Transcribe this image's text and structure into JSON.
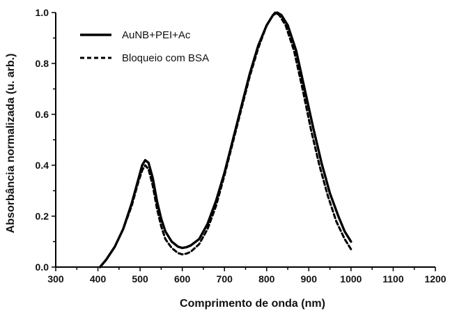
{
  "chart_data": {
    "type": "line",
    "title": "",
    "xlabel": "Comprimento de onda (nm)",
    "ylabel": "Absorbância normalizada (u. arb.)",
    "xlim": [
      300,
      1200
    ],
    "ylim": [
      0.0,
      1.0
    ],
    "xticks": [
      300,
      400,
      500,
      600,
      700,
      800,
      900,
      1000,
      1100,
      1200
    ],
    "xtick_labels": [
      "300",
      "400",
      "500",
      "600",
      "700",
      "800",
      "900",
      "1000",
      "1100",
      "1200"
    ],
    "yticks": [
      0.0,
      0.2,
      0.4,
      0.6,
      0.8,
      1.0
    ],
    "ytick_labels": [
      "0.0",
      "0.2",
      "0.4",
      "0.6",
      "0.8",
      "1.0"
    ],
    "grid": false,
    "legend_position": "top-left",
    "series": [
      {
        "name": "AuNB+PEI+Ac",
        "style": "solid",
        "color": "#000000",
        "points": [
          [
            405,
            0.0
          ],
          [
            420,
            0.03
          ],
          [
            440,
            0.08
          ],
          [
            460,
            0.15
          ],
          [
            480,
            0.25
          ],
          [
            495,
            0.34
          ],
          [
            505,
            0.4
          ],
          [
            512,
            0.42
          ],
          [
            520,
            0.41
          ],
          [
            530,
            0.35
          ],
          [
            540,
            0.26
          ],
          [
            550,
            0.19
          ],
          [
            560,
            0.14
          ],
          [
            575,
            0.1
          ],
          [
            590,
            0.08
          ],
          [
            600,
            0.075
          ],
          [
            610,
            0.078
          ],
          [
            620,
            0.085
          ],
          [
            640,
            0.11
          ],
          [
            660,
            0.17
          ],
          [
            680,
            0.26
          ],
          [
            700,
            0.37
          ],
          [
            720,
            0.5
          ],
          [
            740,
            0.63
          ],
          [
            760,
            0.76
          ],
          [
            780,
            0.87
          ],
          [
            800,
            0.95
          ],
          [
            815,
            0.99
          ],
          [
            825,
            1.0
          ],
          [
            835,
            0.99
          ],
          [
            850,
            0.95
          ],
          [
            870,
            0.85
          ],
          [
            890,
            0.7
          ],
          [
            910,
            0.55
          ],
          [
            930,
            0.41
          ],
          [
            950,
            0.29
          ],
          [
            970,
            0.2
          ],
          [
            985,
            0.14
          ],
          [
            1000,
            0.1
          ]
        ]
      },
      {
        "name": "Bloqueio com BSA",
        "style": "dashed",
        "color": "#000000",
        "points": [
          [
            405,
            0.0
          ],
          [
            420,
            0.03
          ],
          [
            440,
            0.08
          ],
          [
            460,
            0.15
          ],
          [
            480,
            0.24
          ],
          [
            495,
            0.33
          ],
          [
            505,
            0.38
          ],
          [
            512,
            0.4
          ],
          [
            520,
            0.385
          ],
          [
            530,
            0.32
          ],
          [
            540,
            0.23
          ],
          [
            550,
            0.16
          ],
          [
            560,
            0.11
          ],
          [
            575,
            0.075
          ],
          [
            590,
            0.055
          ],
          [
            600,
            0.05
          ],
          [
            610,
            0.053
          ],
          [
            620,
            0.06
          ],
          [
            640,
            0.09
          ],
          [
            660,
            0.15
          ],
          [
            680,
            0.24
          ],
          [
            700,
            0.36
          ],
          [
            720,
            0.49
          ],
          [
            740,
            0.62
          ],
          [
            760,
            0.75
          ],
          [
            780,
            0.86
          ],
          [
            800,
            0.95
          ],
          [
            815,
            0.99
          ],
          [
            820,
            1.0
          ],
          [
            830,
            0.99
          ],
          [
            845,
            0.95
          ],
          [
            865,
            0.85
          ],
          [
            885,
            0.7
          ],
          [
            905,
            0.54
          ],
          [
            925,
            0.4
          ],
          [
            945,
            0.28
          ],
          [
            965,
            0.18
          ],
          [
            985,
            0.11
          ],
          [
            1000,
            0.07
          ]
        ]
      }
    ]
  }
}
